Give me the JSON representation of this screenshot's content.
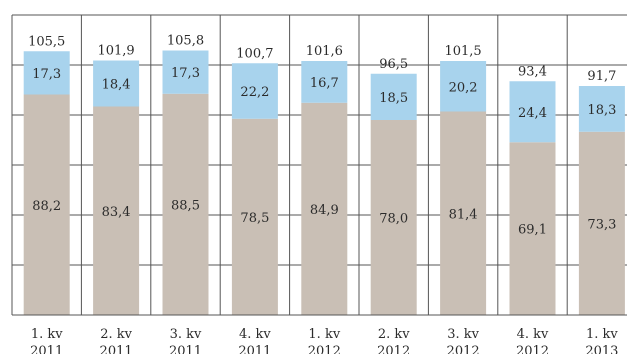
{
  "chart_data": {
    "type": "bar",
    "stacked": true,
    "categories": [
      [
        "1. kv",
        "2011"
      ],
      [
        "2. kv",
        "2011"
      ],
      [
        "3. kv",
        "2011"
      ],
      [
        "4. kv",
        "2011"
      ],
      [
        "1. kv",
        "2012"
      ],
      [
        "2. kv",
        "2012"
      ],
      [
        "3. kv",
        "2012"
      ],
      [
        "4. kv",
        "2012"
      ],
      [
        "1. kv",
        "2013"
      ]
    ],
    "series": [
      {
        "values": [
          88.2,
          83.4,
          88.5,
          78.5,
          84.9,
          78.0,
          81.4,
          69.1,
          73.3
        ],
        "labels": [
          "88,2",
          "83,4",
          "88,5",
          "78,5",
          "84,9",
          "78,0",
          "81,4",
          "69,1",
          "73,3"
        ],
        "color": "#c9bfb5"
      },
      {
        "values": [
          17.3,
          18.4,
          17.3,
          22.2,
          16.7,
          18.5,
          20.2,
          24.4,
          18.3
        ],
        "labels": [
          "17,3",
          "18,4",
          "17,3",
          "22,2",
          "16,7",
          "18,5",
          "20,2",
          "24,4",
          "18,3"
        ],
        "color": "#a8d3ed"
      }
    ],
    "totals": [
      105.5,
      101.9,
      105.8,
      100.7,
      101.6,
      96.5,
      101.5,
      93.4,
      91.7
    ],
    "total_labels": [
      "105,5",
      "101,9",
      "105,8",
      "100,7",
      "101,6",
      "96,5",
      "101,5",
      "93,4",
      "91,7"
    ],
    "ylim": [
      0,
      120
    ],
    "grid": true,
    "legend": "none",
    "colors": {
      "grid": "#555555",
      "text": "#2b2b2b"
    }
  }
}
